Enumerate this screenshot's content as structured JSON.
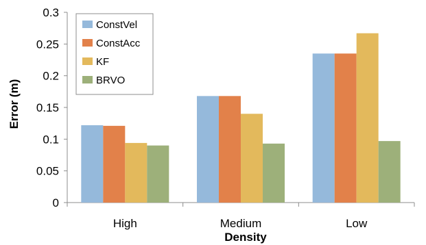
{
  "chart_data": {
    "type": "bar",
    "title": "",
    "xlabel": "Density",
    "ylabel": "Error (m)",
    "categories": [
      "High",
      "Medium",
      "Low"
    ],
    "ylim": [
      0,
      0.3
    ],
    "yticks": [
      "0",
      "0.05",
      "0.1",
      "0.15",
      "0.2",
      "0.25",
      "0.3"
    ],
    "grid": false,
    "legend_position": "top-left",
    "series": [
      {
        "name": "ConstVel",
        "color": "#95b9db",
        "values": [
          0.122,
          0.168,
          0.235
        ]
      },
      {
        "name": "ConstAcc",
        "color": "#e2814a",
        "values": [
          0.121,
          0.168,
          0.235
        ]
      },
      {
        "name": "KF",
        "color": "#e3b95c",
        "values": [
          0.094,
          0.14,
          0.267
        ]
      },
      {
        "name": "BRVO",
        "color": "#9db07a",
        "values": [
          0.09,
          0.093,
          0.097
        ]
      }
    ]
  }
}
